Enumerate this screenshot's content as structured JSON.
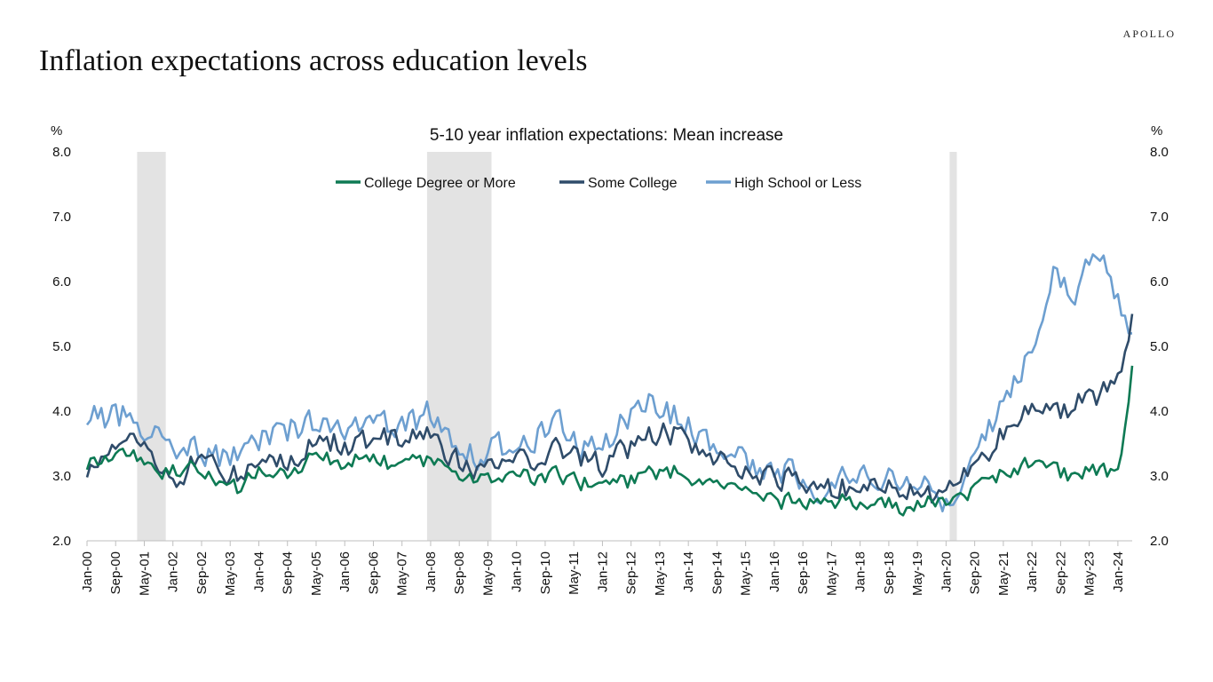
{
  "header": {
    "brand": "APOLLO",
    "page_title": "Inflation expectations across education levels"
  },
  "chart_data": {
    "type": "line",
    "title": "5-10 year inflation expectations: Mean increase",
    "ylabel_left": "%",
    "ylabel_right": "%",
    "ylim": [
      2.0,
      8.0
    ],
    "yticks": [
      "2.0",
      "3.0",
      "4.0",
      "5.0",
      "6.0",
      "7.0",
      "8.0"
    ],
    "x_tick_labels": [
      "Jan-00",
      "Sep-00",
      "May-01",
      "Jan-02",
      "Sep-02",
      "May-03",
      "Jan-04",
      "Sep-04",
      "May-05",
      "Jan-06",
      "Sep-06",
      "May-07",
      "Jan-08",
      "Sep-08",
      "May-09",
      "Jan-10",
      "Sep-10",
      "May-11",
      "Jan-12",
      "Sep-12",
      "May-13",
      "Jan-14",
      "Sep-14",
      "May-15",
      "Jan-16",
      "Sep-16",
      "May-17",
      "Jan-18",
      "Sep-18",
      "May-19",
      "Jan-20",
      "Sep-20",
      "May-21",
      "Jan-22",
      "Sep-22",
      "May-23",
      "Jan-24"
    ],
    "x_range_months": [
      0,
      292
    ],
    "recessions": [
      {
        "start": "Mar-01",
        "end": "Nov-01"
      },
      {
        "start": "Dec-07",
        "end": "Jun-09"
      },
      {
        "start": "Feb-20",
        "end": "Apr-20"
      }
    ],
    "legend_position": "top-center",
    "series": [
      {
        "name": "College Degree or More",
        "color": "#0e7a54",
        "anchors": [
          [
            0,
            3.2
          ],
          [
            12,
            3.4
          ],
          [
            20,
            3.0
          ],
          [
            24,
            3.1
          ],
          [
            30,
            3.1
          ],
          [
            36,
            2.9
          ],
          [
            42,
            2.8
          ],
          [
            48,
            3.1
          ],
          [
            54,
            3.0
          ],
          [
            60,
            3.2
          ],
          [
            66,
            3.3
          ],
          [
            72,
            3.2
          ],
          [
            78,
            3.3
          ],
          [
            84,
            3.2
          ],
          [
            90,
            3.2
          ],
          [
            96,
            3.2
          ],
          [
            102,
            3.1
          ],
          [
            108,
            3.0
          ],
          [
            114,
            2.9
          ],
          [
            120,
            3.0
          ],
          [
            126,
            3.0
          ],
          [
            132,
            3.0
          ],
          [
            138,
            2.9
          ],
          [
            144,
            2.9
          ],
          [
            150,
            2.9
          ],
          [
            156,
            3.0
          ],
          [
            162,
            3.1
          ],
          [
            168,
            3.0
          ],
          [
            174,
            2.9
          ],
          [
            180,
            2.8
          ],
          [
            186,
            2.7
          ],
          [
            192,
            2.6
          ],
          [
            198,
            2.6
          ],
          [
            204,
            2.6
          ],
          [
            210,
            2.6
          ],
          [
            216,
            2.6
          ],
          [
            222,
            2.6
          ],
          [
            228,
            2.5
          ],
          [
            234,
            2.6
          ],
          [
            240,
            2.6
          ],
          [
            246,
            2.7
          ],
          [
            252,
            2.9
          ],
          [
            258,
            3.1
          ],
          [
            264,
            3.2
          ],
          [
            270,
            3.1
          ],
          [
            276,
            3.0
          ],
          [
            282,
            3.1
          ],
          [
            288,
            3.0
          ],
          [
            292,
            4.7
          ]
        ],
        "amplitude": 0.22,
        "seed": 1
      },
      {
        "name": "Some College",
        "color": "#2f4c6a",
        "anchors": [
          [
            0,
            3.1
          ],
          [
            12,
            3.7
          ],
          [
            20,
            3.2
          ],
          [
            24,
            2.9
          ],
          [
            30,
            3.2
          ],
          [
            36,
            3.1
          ],
          [
            42,
            3.0
          ],
          [
            48,
            3.2
          ],
          [
            54,
            3.2
          ],
          [
            60,
            3.4
          ],
          [
            66,
            3.5
          ],
          [
            72,
            3.5
          ],
          [
            78,
            3.5
          ],
          [
            84,
            3.6
          ],
          [
            90,
            3.6
          ],
          [
            96,
            3.6
          ],
          [
            102,
            3.3
          ],
          [
            108,
            3.1
          ],
          [
            114,
            3.2
          ],
          [
            120,
            3.2
          ],
          [
            126,
            3.3
          ],
          [
            132,
            3.4
          ],
          [
            138,
            3.3
          ],
          [
            144,
            3.2
          ],
          [
            150,
            3.4
          ],
          [
            156,
            3.6
          ],
          [
            162,
            3.7
          ],
          [
            168,
            3.5
          ],
          [
            174,
            3.4
          ],
          [
            180,
            3.1
          ],
          [
            186,
            3.1
          ],
          [
            192,
            3.0
          ],
          [
            198,
            2.9
          ],
          [
            204,
            2.8
          ],
          [
            210,
            2.8
          ],
          [
            216,
            2.9
          ],
          [
            222,
            2.8
          ],
          [
            228,
            2.8
          ],
          [
            234,
            2.7
          ],
          [
            240,
            2.8
          ],
          [
            246,
            3.0
          ],
          [
            252,
            3.3
          ],
          [
            258,
            3.9
          ],
          [
            264,
            4.0
          ],
          [
            270,
            4.0
          ],
          [
            276,
            4.1
          ],
          [
            282,
            4.2
          ],
          [
            288,
            4.5
          ],
          [
            292,
            5.5
          ]
        ],
        "amplitude": 0.32,
        "seed": 2
      },
      {
        "name": "High School or Less",
        "color": "#6d9fd0",
        "anchors": [
          [
            0,
            3.9
          ],
          [
            12,
            3.9
          ],
          [
            20,
            3.6
          ],
          [
            24,
            3.4
          ],
          [
            30,
            3.4
          ],
          [
            36,
            3.3
          ],
          [
            42,
            3.3
          ],
          [
            48,
            3.5
          ],
          [
            54,
            3.6
          ],
          [
            60,
            3.8
          ],
          [
            66,
            3.8
          ],
          [
            72,
            3.8
          ],
          [
            78,
            3.8
          ],
          [
            84,
            3.8
          ],
          [
            90,
            3.8
          ],
          [
            96,
            4.0
          ],
          [
            102,
            3.6
          ],
          [
            108,
            3.3
          ],
          [
            114,
            3.4
          ],
          [
            120,
            3.5
          ],
          [
            126,
            3.6
          ],
          [
            132,
            3.8
          ],
          [
            138,
            3.5
          ],
          [
            144,
            3.4
          ],
          [
            150,
            3.9
          ],
          [
            156,
            4.2
          ],
          [
            162,
            4.0
          ],
          [
            168,
            3.8
          ],
          [
            174,
            3.5
          ],
          [
            180,
            3.4
          ],
          [
            186,
            3.2
          ],
          [
            192,
            3.1
          ],
          [
            198,
            3.0
          ],
          [
            204,
            2.8
          ],
          [
            210,
            2.9
          ],
          [
            216,
            3.0
          ],
          [
            222,
            3.0
          ],
          [
            228,
            2.9
          ],
          [
            234,
            2.8
          ],
          [
            240,
            2.6
          ],
          [
            246,
            3.1
          ],
          [
            252,
            3.7
          ],
          [
            258,
            4.3
          ],
          [
            264,
            5.0
          ],
          [
            270,
            6.2
          ],
          [
            276,
            5.9
          ],
          [
            282,
            6.5
          ],
          [
            288,
            5.8
          ],
          [
            292,
            5.2
          ]
        ],
        "amplitude": 0.38,
        "seed": 3
      }
    ]
  }
}
